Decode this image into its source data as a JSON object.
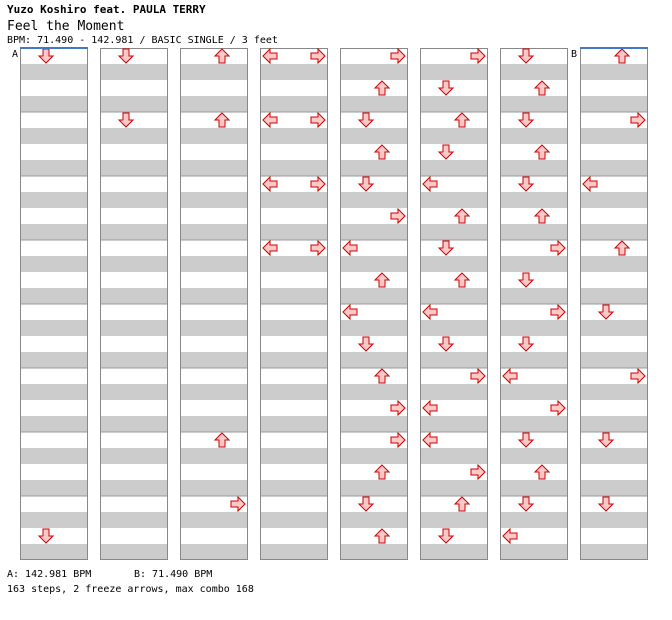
{
  "header": {
    "artist": "Yuzo Koshiro feat. PAULA TERRY",
    "title": "Feel the Moment",
    "meta": "BPM: 71.490 - 142.981 / BASIC SINGLE / 3 feet"
  },
  "markers": {
    "a": "A",
    "b": "B"
  },
  "footer": {
    "bpm_a": "A: 142.981 BPM",
    "bpm_b": "B: 71.490 BPM",
    "summary": "163 steps, 2 freeze arrows, max combo 168"
  },
  "colors": {
    "stripe": "#cccccc",
    "arrow_fill": "#ffc8c8",
    "arrow_stroke": "#cc0000",
    "freeze_fill": "#c8ffc8",
    "freeze_stroke": "#33aa33",
    "marker_line": "#4477cc"
  },
  "chart_data": {
    "type": "step-chart",
    "lanes": [
      "left",
      "down",
      "up",
      "right"
    ],
    "rows_per_column": 32,
    "columns": [
      {
        "notes": [
          [
            0,
            "down"
          ],
          [
            30,
            "down"
          ]
        ],
        "freezes": []
      },
      {
        "notes": [
          [
            0,
            "down"
          ],
          [
            4,
            "down"
          ]
        ],
        "freezes": []
      },
      {
        "notes": [
          [
            0,
            "up"
          ],
          [
            4,
            "up"
          ],
          [
            24,
            "up"
          ],
          [
            28,
            "right"
          ]
        ],
        "freezes": []
      },
      {
        "notes": [
          [
            0,
            "left"
          ],
          [
            0,
            "right"
          ],
          [
            4,
            "left"
          ],
          [
            4,
            "right"
          ],
          [
            8,
            "left"
          ],
          [
            8,
            "right"
          ],
          [
            12,
            "left"
          ],
          [
            12,
            "right"
          ]
        ],
        "freezes": []
      },
      {
        "notes": [
          [
            0,
            "right"
          ],
          [
            2,
            "up"
          ],
          [
            4,
            "down"
          ],
          [
            6,
            "up"
          ],
          [
            8,
            "down"
          ],
          [
            10,
            "right"
          ],
          [
            12,
            "left"
          ],
          [
            14,
            "up"
          ],
          [
            16,
            "left"
          ],
          [
            18,
            "down"
          ],
          [
            20,
            "up"
          ],
          [
            22,
            "right"
          ],
          [
            24,
            "right"
          ],
          [
            26,
            "up"
          ],
          [
            28,
            "down"
          ],
          [
            30,
            "up"
          ]
        ],
        "freezes": []
      },
      {
        "notes": [
          [
            0,
            "right"
          ],
          [
            2,
            "down"
          ],
          [
            4,
            "up"
          ],
          [
            6,
            "down"
          ],
          [
            8,
            "left"
          ],
          [
            10,
            "up"
          ],
          [
            12,
            "down"
          ],
          [
            14,
            "up"
          ],
          [
            16,
            "left"
          ],
          [
            18,
            "down"
          ],
          [
            20,
            "right"
          ],
          [
            22,
            "left"
          ],
          [
            24,
            "left"
          ],
          [
            26,
            "right"
          ],
          [
            28,
            "up"
          ],
          [
            30,
            "down"
          ]
        ],
        "freezes": []
      },
      {
        "notes": [
          [
            0,
            "down"
          ],
          [
            2,
            "up"
          ],
          [
            4,
            "down"
          ],
          [
            6,
            "up"
          ],
          [
            8,
            "down"
          ],
          [
            10,
            "up"
          ],
          [
            12,
            "right"
          ],
          [
            14,
            "down"
          ],
          [
            16,
            "right"
          ],
          [
            18,
            "down"
          ],
          [
            20,
            "left"
          ],
          [
            22,
            "right"
          ],
          [
            24,
            "down"
          ],
          [
            26,
            "up"
          ],
          [
            28,
            "down"
          ],
          [
            30,
            "left"
          ]
        ],
        "freezes": []
      },
      {
        "notes": [
          [
            0,
            "up"
          ],
          [
            4,
            "right"
          ],
          [
            8,
            "left"
          ],
          [
            12,
            "up"
          ],
          [
            16,
            "down"
          ],
          [
            20,
            "right"
          ],
          [
            24,
            "down"
          ],
          [
            28,
            "down"
          ]
        ],
        "freezes": []
      }
    ]
  }
}
